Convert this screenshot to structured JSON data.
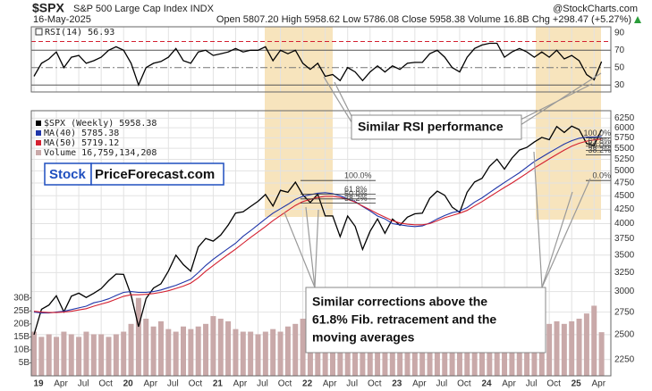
{
  "header": {
    "symbol": "$SPX",
    "name": "S&P 500 Large Cap Index INDX",
    "source": "@StockCharts.com",
    "date": "16-May-2025",
    "quote": "Open 5807.20 High 5958.62 Low 5786.08 Close 5958.38 Volume 16.8B Chg +298.47 (+5.27%)"
  },
  "watermark": {
    "part1": "Stock",
    "part2": "PriceForecast.com"
  },
  "callouts": {
    "rsi": "Similar RSI performance",
    "corrections": [
      "Similar corrections above the",
      "61.8% Fib. retracement and the",
      "moving averages"
    ]
  },
  "chart_data": [
    {
      "type": "line",
      "series": [
        {
          "name": "RSI(14) 56.93",
          "color": "#000000",
          "values": [
            40,
            55,
            60,
            68,
            50,
            62,
            64,
            55,
            58,
            62,
            70,
            74,
            70,
            55,
            30,
            50,
            55,
            57,
            62,
            72,
            58,
            55,
            68,
            70,
            64,
            66,
            68,
            72,
            68,
            70,
            70,
            74,
            58,
            70,
            66,
            70,
            55,
            48,
            55,
            40,
            42,
            35,
            50,
            45,
            35,
            45,
            52,
            45,
            52,
            48,
            55,
            56,
            56,
            66,
            70,
            62,
            50,
            45,
            62,
            72,
            76,
            78,
            78,
            62,
            68,
            72,
            68,
            62,
            68,
            62,
            70,
            60,
            64,
            58,
            42,
            36,
            56.93
          ]
        }
      ],
      "ylim": [
        22,
        97
      ],
      "yticks": [
        90,
        70,
        50,
        30
      ],
      "reference_lines": [
        80,
        70,
        50,
        30
      ],
      "grid": true
    },
    {
      "type": "line",
      "log_scale": true,
      "grid": true,
      "categories": [
        "19",
        null,
        null,
        "Apr",
        null,
        null,
        "Jul",
        null,
        null,
        "Oct",
        null,
        null,
        "20",
        null,
        null,
        "Apr",
        null,
        null,
        "Jul",
        null,
        null,
        "Oct",
        null,
        null,
        "21",
        null,
        null,
        "Apr",
        null,
        null,
        "Jul",
        null,
        null,
        "Oct",
        null,
        null,
        "22",
        null,
        null,
        "Apr",
        null,
        null,
        "Jul",
        null,
        null,
        "Oct",
        null,
        null,
        "23",
        null,
        null,
        "Apr",
        null,
        null,
        "Jul",
        null,
        null,
        "Oct",
        null,
        null,
        "24",
        null,
        null,
        "Apr",
        null,
        null,
        "Jul",
        null,
        null,
        "Oct",
        null,
        null,
        "25",
        null,
        null,
        "Apr",
        null
      ],
      "series": [
        {
          "name": "$SPX (Weekly) 5958.38",
          "color": "#000000",
          "values": [
            2500,
            2784,
            2834,
            2946,
            2752,
            2942,
            2980,
            2926,
            2977,
            3038,
            3141,
            3231,
            3226,
            2954,
            2585,
            2912,
            3044,
            3100,
            3271,
            3500,
            3363,
            3270,
            3622,
            3756,
            3714,
            3811,
            3973,
            4181,
            4204,
            4298,
            4395,
            4523,
            4308,
            4605,
            4567,
            4766,
            4516,
            4374,
            4530,
            4132,
            4132,
            3785,
            4130,
            3955,
            3586,
            3872,
            4080,
            3840,
            4077,
            3970,
            4109,
            4169,
            4180,
            4450,
            4589,
            4508,
            4288,
            4194,
            4568,
            4770,
            4846,
            5096,
            5254,
            5036,
            5278,
            5460,
            5522,
            5648,
            5762,
            5705,
            6032,
            5882,
            6041,
            5955,
            5612,
            5569,
            5958
          ]
        },
        {
          "name": "MA(40) 5785.38",
          "color": "#1f35a8",
          "values": [
            2750,
            2740,
            2740,
            2750,
            2760,
            2780,
            2800,
            2820,
            2860,
            2880,
            2910,
            2950,
            2990,
            3000,
            2990,
            2990,
            3000,
            3020,
            3050,
            3080,
            3120,
            3160,
            3250,
            3350,
            3440,
            3520,
            3600,
            3680,
            3790,
            3880,
            3980,
            4080,
            4180,
            4260,
            4340,
            4430,
            4490,
            4520,
            4550,
            4560,
            4540,
            4500,
            4440,
            4390,
            4300,
            4220,
            4130,
            4080,
            4000,
            3980,
            3960,
            3950,
            3960,
            4010,
            4080,
            4140,
            4190,
            4220,
            4280,
            4380,
            4460,
            4560,
            4660,
            4760,
            4860,
            4960,
            5080,
            5200,
            5300,
            5400,
            5500,
            5600,
            5680,
            5740,
            5770,
            5770,
            5785
          ]
        },
        {
          "name": "MA(50) 5719.12",
          "color": "#d42030",
          "values": [
            2760,
            2750,
            2745,
            2745,
            2750,
            2760,
            2775,
            2790,
            2820,
            2845,
            2870,
            2905,
            2940,
            2960,
            2960,
            2965,
            2975,
            2990,
            3010,
            3040,
            3070,
            3110,
            3180,
            3270,
            3350,
            3430,
            3510,
            3590,
            3680,
            3770,
            3860,
            3950,
            4050,
            4140,
            4230,
            4320,
            4390,
            4430,
            4470,
            4490,
            4490,
            4470,
            4430,
            4380,
            4310,
            4240,
            4170,
            4110,
            4050,
            4010,
            3990,
            3980,
            3980,
            4000,
            4050,
            4100,
            4140,
            4180,
            4230,
            4310,
            4390,
            4480,
            4570,
            4660,
            4750,
            4850,
            4950,
            5060,
            5160,
            5260,
            5360,
            5460,
            5550,
            5620,
            5670,
            5700,
            5719
          ]
        }
      ],
      "ylim": [
        2100,
        6450
      ],
      "yticks": [
        6250,
        6000,
        5750,
        5500,
        5250,
        5000,
        4750,
        4500,
        4250,
        4000,
        3750,
        3500,
        3250,
        3000,
        2750,
        2500,
        2250
      ],
      "fibonacci": [
        [
          {
            "value": 4800,
            "label": "100.0%"
          },
          {
            "value": 4530,
            "label": "61.8%"
          },
          {
            "value": 4440,
            "label": "50.0%"
          },
          {
            "value": 4360,
            "label": "38.2%"
          }
        ],
        [
          {
            "value": 5750,
            "label": "100.0%"
          },
          {
            "value": 5550,
            "label": "61.8%"
          },
          {
            "value": 5450,
            "label": "50.0%"
          },
          {
            "value": 5350,
            "label": "38.2%"
          },
          {
            "value": 4800,
            "label": "0.0%"
          }
        ]
      ]
    },
    {
      "type": "bar",
      "series": [
        {
          "name": "Volume 16,759,134,208",
          "color": "#c9a9a9",
          "values": [
            17,
            15,
            16,
            15,
            17,
            16,
            15,
            17,
            16,
            16,
            15,
            16,
            17,
            20,
            30,
            22,
            19,
            21,
            18,
            17,
            19,
            18,
            19,
            20,
            23,
            22,
            21,
            18,
            17,
            17,
            16,
            17,
            18,
            17,
            19,
            20,
            22,
            20,
            21,
            20,
            21,
            22,
            18,
            18,
            20,
            19,
            19,
            18,
            19,
            18,
            22,
            17,
            19,
            19,
            17,
            17,
            18,
            18,
            17,
            19,
            18,
            19,
            19,
            18,
            19,
            20,
            19,
            20,
            19,
            20,
            21,
            20,
            21,
            22,
            24,
            27,
            16.8
          ]
        }
      ],
      "ylim": [
        0,
        33
      ],
      "yticks": [
        {
          "value": 30,
          "label": "30B"
        },
        {
          "value": 25,
          "label": "25B"
        },
        {
          "value": 20,
          "label": "20B"
        },
        {
          "value": 15,
          "label": "15B"
        },
        {
          "value": 10,
          "label": "10B"
        },
        {
          "value": 5,
          "label": "5B"
        }
      ]
    }
  ]
}
